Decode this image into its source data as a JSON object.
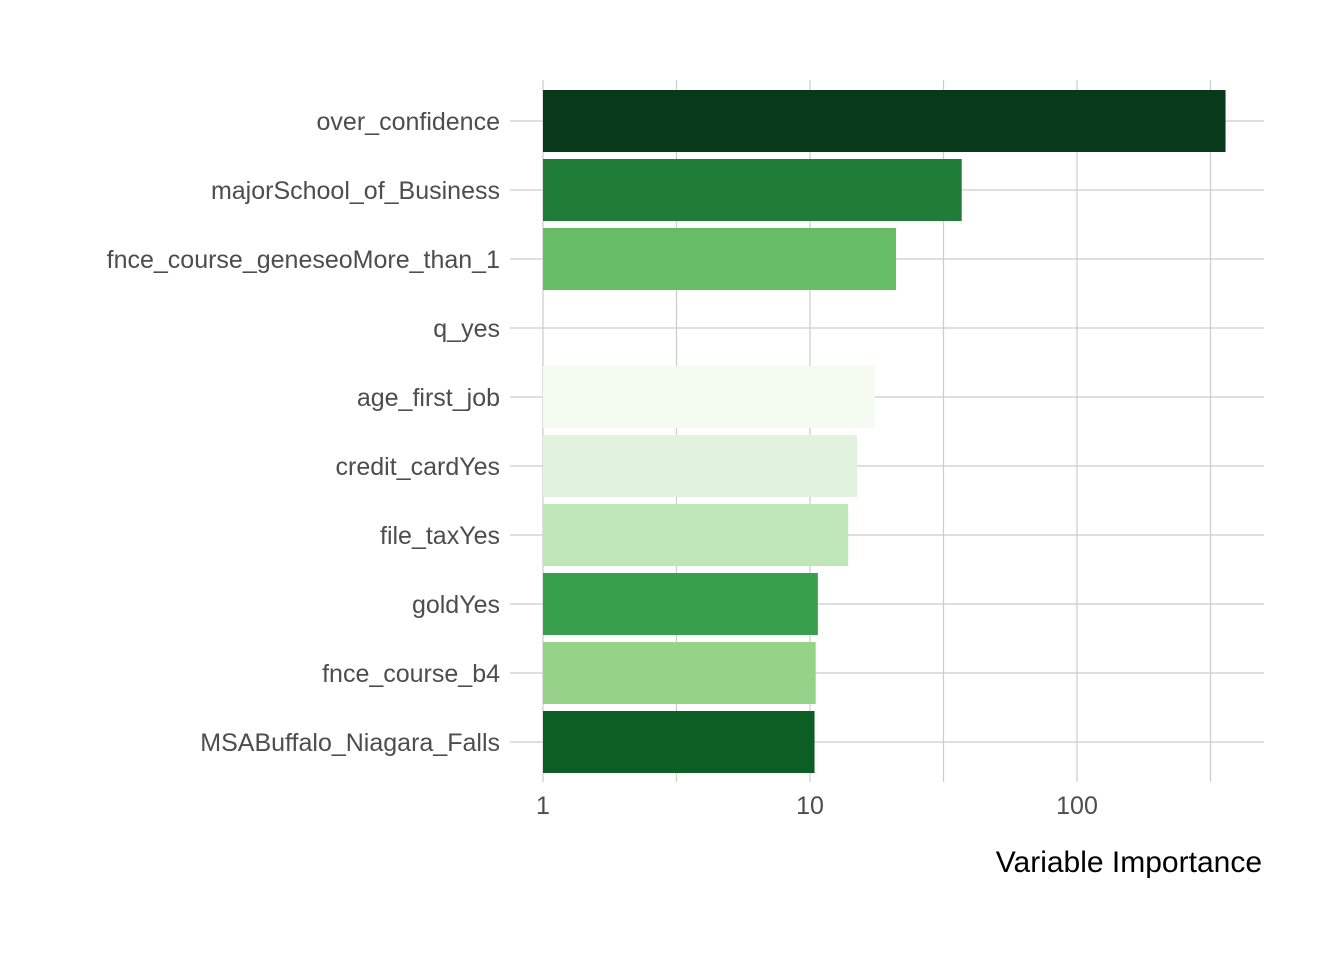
{
  "chart_data": {
    "type": "bar",
    "orientation": "horizontal",
    "x_scale": "log10",
    "xlabel": "Variable Importance",
    "ylabel": "",
    "xlim": [
      1,
      520
    ],
    "x_ticks": [
      {
        "value": 1,
        "label": "1"
      },
      {
        "value": 10,
        "label": "10"
      },
      {
        "value": 100,
        "label": "100"
      }
    ],
    "grid": true,
    "legend": "none",
    "bars": [
      {
        "category": "over_confidence",
        "value": 360,
        "color": "#08391A"
      },
      {
        "category": "majorSchool_of_Business",
        "value": 37,
        "color": "#207D37"
      },
      {
        "category": "fnce_course_geneseoMore_than_1",
        "value": 21,
        "color": "#66BD66"
      },
      {
        "category": "q_yes",
        "value": 1,
        "color": "#FFFFFF"
      },
      {
        "category": "age_first_job",
        "value": 17.5,
        "color": "#F4FBF1"
      },
      {
        "category": "credit_cardYes",
        "value": 15,
        "color": "#E1F3DC"
      },
      {
        "category": "file_taxYes",
        "value": 13.9,
        "color": "#BFE6B6"
      },
      {
        "category": "goldYes",
        "value": 10.7,
        "color": "#38A04D"
      },
      {
        "category": "fnce_course_b4",
        "value": 10.5,
        "color": "#96D388"
      },
      {
        "category": "MSABuffalo_Niagara_Falls",
        "value": 10.4,
        "color": "#0D5E24"
      }
    ]
  }
}
